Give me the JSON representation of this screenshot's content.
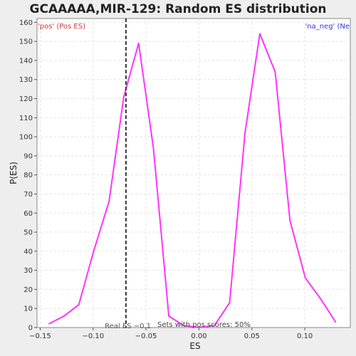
{
  "chart_data": {
    "type": "line",
    "title": "GCAAAAA,MIR-129: Random ES distribution",
    "xlabel": "ES",
    "ylabel": "P(ES)",
    "xlim": [
      -0.153,
      0.143
    ],
    "ylim": [
      0,
      162
    ],
    "xticks": [
      -0.15,
      -0.1,
      -0.05,
      0.0,
      0.05,
      0.1
    ],
    "xtick_labels": [
      "−0.15",
      "−0.10",
      "−0.05",
      "0.00",
      "0.05",
      "0.10"
    ],
    "yticks": [
      0,
      10,
      20,
      30,
      40,
      50,
      60,
      70,
      80,
      90,
      100,
      110,
      120,
      130,
      140,
      150,
      160
    ],
    "grid": true,
    "series": [
      {
        "color": "#ff33ff",
        "x": [
          -0.1415,
          -0.1275,
          -0.1135,
          -0.0995,
          -0.085,
          -0.071,
          -0.057,
          -0.043,
          -0.0285,
          -0.0145,
          0.0,
          0.0145,
          0.029,
          0.0435,
          0.0575,
          0.072,
          0.086,
          0.1005,
          0.115,
          0.129
        ],
        "y": [
          2,
          6,
          12,
          40,
          66,
          121,
          149,
          94,
          6,
          1,
          0,
          1,
          13,
          102,
          154,
          134,
          56,
          26,
          15,
          3
        ]
      }
    ],
    "real_es": {
      "x": -0.069,
      "label": "Real ES −0.1",
      "color": "#333333"
    },
    "pos_label": {
      "text": "'pos' (Pos ES)",
      "color": "#dd3333",
      "position": "top-left"
    },
    "neg_label": {
      "text": "'na_neg' (Ne",
      "color": "#3333dd",
      "position": "top-right"
    },
    "annotation": "Sets with pos scores: 50%"
  }
}
